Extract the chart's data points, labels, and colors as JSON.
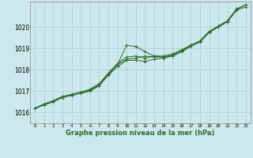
{
  "xlabel": "Graphe pression niveau de la mer (hPa)",
  "xlim": [
    -0.5,
    23.5
  ],
  "ylim": [
    1015.5,
    1021.2
  ],
  "yticks": [
    1016,
    1017,
    1018,
    1019,
    1020
  ],
  "xticks": [
    0,
    1,
    2,
    3,
    4,
    5,
    6,
    7,
    8,
    9,
    10,
    11,
    12,
    13,
    14,
    15,
    16,
    17,
    18,
    19,
    20,
    21,
    22,
    23
  ],
  "bg_color": "#cce8ec",
  "grid_color": "#aacccc",
  "line_color": "#2d6a2d",
  "marker": "+",
  "lines": [
    [
      1016.2,
      1016.4,
      1016.55,
      1016.75,
      1016.85,
      1016.95,
      1017.05,
      1017.3,
      1017.8,
      1018.25,
      1019.15,
      1019.1,
      1018.85,
      1018.65,
      1018.6,
      1018.65,
      1018.85,
      1019.15,
      1019.35,
      1019.8,
      1020.05,
      1020.3,
      1020.85,
      1021.05
    ],
    [
      1016.2,
      1016.4,
      1016.55,
      1016.75,
      1016.85,
      1016.95,
      1017.05,
      1017.3,
      1017.8,
      1018.25,
      1018.5,
      1018.55,
      1018.65,
      1018.6,
      1018.6,
      1018.7,
      1018.9,
      1019.15,
      1019.35,
      1019.8,
      1020.05,
      1020.3,
      1020.85,
      1021.05
    ],
    [
      1016.2,
      1016.4,
      1016.55,
      1016.75,
      1016.85,
      1016.95,
      1017.1,
      1017.35,
      1017.85,
      1018.3,
      1018.6,
      1018.65,
      1018.55,
      1018.65,
      1018.65,
      1018.75,
      1018.95,
      1019.15,
      1019.35,
      1019.8,
      1020.05,
      1020.3,
      1020.85,
      1021.05
    ],
    [
      1016.2,
      1016.35,
      1016.5,
      1016.7,
      1016.8,
      1016.9,
      1017.0,
      1017.25,
      1017.75,
      1018.15,
      1018.45,
      1018.45,
      1018.4,
      1018.5,
      1018.55,
      1018.65,
      1018.85,
      1019.1,
      1019.3,
      1019.75,
      1020.0,
      1020.25,
      1020.8,
      1020.95
    ]
  ]
}
